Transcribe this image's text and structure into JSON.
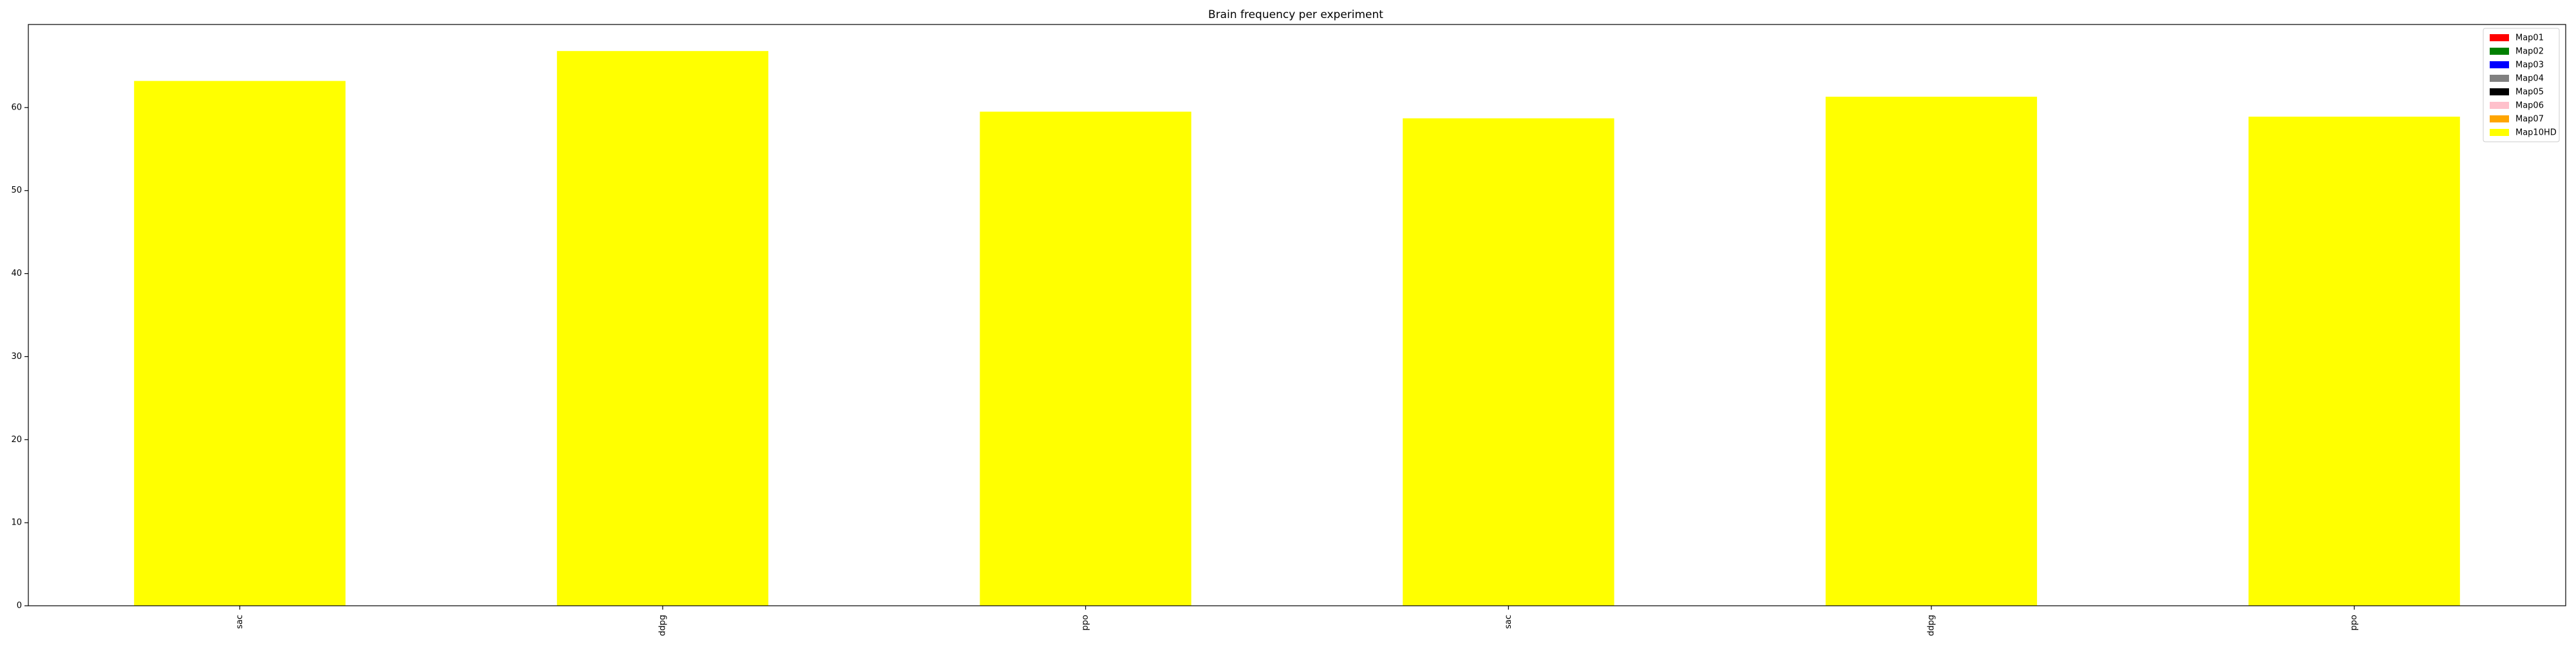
{
  "chart_data": {
    "type": "bar",
    "title": "Brain frequency per experiment",
    "xlabel": "",
    "ylabel": "",
    "categories": [
      "sac",
      "ddpg",
      "ppo",
      "sac",
      "ddpg",
      "ppo"
    ],
    "series": [
      {
        "name": "Map01",
        "color": "#ff0000",
        "values": [
          0,
          0,
          0,
          0,
          0,
          0
        ]
      },
      {
        "name": "Map02",
        "color": "#008000",
        "values": [
          0,
          0,
          0,
          0,
          0,
          0
        ]
      },
      {
        "name": "Map03",
        "color": "#0000ff",
        "values": [
          0,
          0,
          0,
          0,
          0,
          0
        ]
      },
      {
        "name": "Map04",
        "color": "#808080",
        "values": [
          0,
          0,
          0,
          0,
          0,
          0
        ]
      },
      {
        "name": "Map05",
        "color": "#000000",
        "values": [
          0,
          0,
          0,
          0,
          0,
          0
        ]
      },
      {
        "name": "Map06",
        "color": "#ffc0cb",
        "values": [
          0,
          0,
          0,
          0,
          0,
          0
        ]
      },
      {
        "name": "Map07",
        "color": "#ffa500",
        "values": [
          0,
          0,
          0,
          0,
          0,
          0
        ]
      },
      {
        "name": "Map10HD",
        "color": "#ffff00",
        "values": [
          63.2,
          66.8,
          59.5,
          58.7,
          61.3,
          58.9
        ]
      }
    ],
    "ylim": [
      0,
      70
    ],
    "yticks": [
      0,
      10,
      20,
      30,
      40,
      50,
      60
    ],
    "grid": false,
    "legend_position": "top-right"
  }
}
